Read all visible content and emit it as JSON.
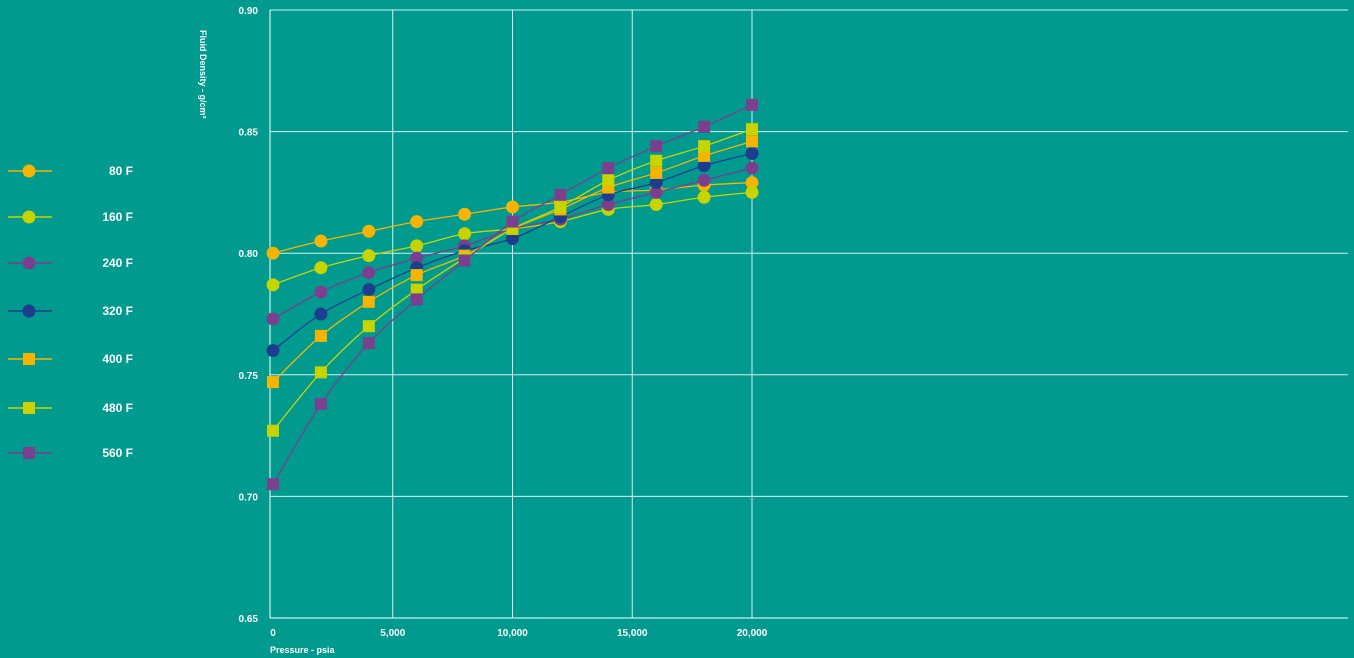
{
  "chart_data": {
    "type": "line",
    "title": "",
    "xlabel": "Pressure  - psia",
    "ylabel": "Fluid Density  - g/cm³",
    "xlim": [
      0,
      22500
    ],
    "ylim": [
      0.65,
      0.9
    ],
    "x_ticks": [
      0,
      5000,
      10000,
      15000,
      20000
    ],
    "x_tick_labels": [
      "0",
      "5,000",
      "10,000",
      "15,000",
      "20,000"
    ],
    "y_ticks": [
      0.65,
      0.7,
      0.75,
      0.8,
      0.85,
      0.9
    ],
    "y_tick_labels": [
      "0.65",
      "0.70",
      "0.75",
      "0.80",
      "0.85",
      "0.90"
    ],
    "grid": true,
    "legend_position": "left",
    "x": [
      0,
      2000,
      4000,
      6000,
      8000,
      10000,
      12000,
      14000,
      16000,
      18000,
      20000
    ],
    "series": [
      {
        "name": "80 F",
        "marker": "circle",
        "color": "#f5b400",
        "values": [
          0.8,
          0.805,
          0.809,
          0.813,
          0.816,
          0.819,
          0.821,
          0.825,
          0.826,
          0.828,
          0.829
        ]
      },
      {
        "name": "160 F",
        "marker": "circle",
        "color": "#c8d400",
        "values": [
          0.787,
          0.794,
          0.799,
          0.803,
          0.808,
          0.81,
          0.813,
          0.818,
          0.82,
          0.823,
          0.825
        ]
      },
      {
        "name": "240 F",
        "marker": "circle",
        "color": "#7b3f8f",
        "values": [
          0.773,
          0.784,
          0.792,
          0.798,
          0.803,
          0.81,
          0.814,
          0.82,
          0.825,
          0.83,
          0.835
        ]
      },
      {
        "name": "320 F",
        "marker": "circle",
        "color": "#1f3d8f",
        "values": [
          0.76,
          0.775,
          0.785,
          0.794,
          0.801,
          0.806,
          0.815,
          0.824,
          0.829,
          0.836,
          0.841
        ]
      },
      {
        "name": "400 F",
        "marker": "square",
        "color": "#f5b400",
        "values": [
          0.747,
          0.766,
          0.78,
          0.791,
          0.799,
          0.81,
          0.818,
          0.827,
          0.833,
          0.84,
          0.846
        ]
      },
      {
        "name": "480 F",
        "marker": "square",
        "color": "#c8d400",
        "values": [
          0.727,
          0.751,
          0.77,
          0.785,
          0.798,
          0.81,
          0.819,
          0.83,
          0.838,
          0.844,
          0.851
        ]
      },
      {
        "name": "560 F",
        "marker": "square",
        "color": "#7b3f8f",
        "values": [
          0.705,
          0.738,
          0.763,
          0.781,
          0.797,
          0.813,
          0.824,
          0.835,
          0.844,
          0.852,
          0.861
        ]
      }
    ]
  }
}
